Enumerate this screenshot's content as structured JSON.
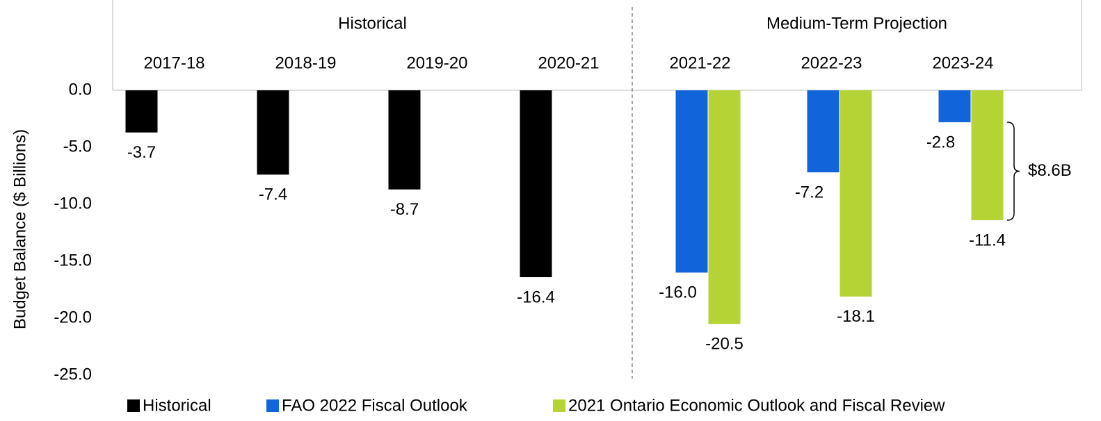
{
  "chart_data": {
    "type": "bar",
    "y_axis_label": "Budget Balance ($ Billions)",
    "group_labels": [
      "Historical",
      "Medium-Term Projection"
    ],
    "annotation": "$8.6B",
    "categories": [
      "2017-18",
      "2018-19",
      "2019-20",
      "2020-21",
      "2021-22",
      "2022-23",
      "2023-24"
    ],
    "series": [
      {
        "name": "Historical",
        "color": "#000000",
        "values": [
          -3.7,
          -7.4,
          -8.7,
          -16.4,
          null,
          null,
          null
        ],
        "value_labels": [
          "-3.7",
          "-7.4",
          "-8.7",
          "-16.4",
          null,
          null,
          null
        ]
      },
      {
        "name": "FAO 2022 Fiscal Outlook",
        "color": "#1164d9",
        "values": [
          null,
          null,
          null,
          null,
          -16.0,
          -7.2,
          -2.8
        ],
        "value_labels": [
          null,
          null,
          null,
          null,
          "-16.0",
          "-7.2",
          "-2.8"
        ]
      },
      {
        "name": "2021 Ontario Economic Outlook and Fiscal Review",
        "color": "#b5d334",
        "values": [
          null,
          null,
          null,
          null,
          -20.5,
          -18.1,
          -11.4
        ],
        "value_labels": [
          null,
          null,
          null,
          null,
          "-20.5",
          "-18.1",
          "-11.4"
        ]
      }
    ],
    "ylim": [
      -25,
      0
    ],
    "yticks": [
      {
        "value": 0,
        "label": "0.0"
      },
      {
        "value": -5,
        "label": "-5.0"
      },
      {
        "value": -10,
        "label": "-10.0"
      },
      {
        "value": -15,
        "label": "-15.0"
      },
      {
        "value": -20,
        "label": "-20.0"
      },
      {
        "value": -25,
        "label": "-25.0"
      }
    ],
    "legend": "bottom"
  }
}
